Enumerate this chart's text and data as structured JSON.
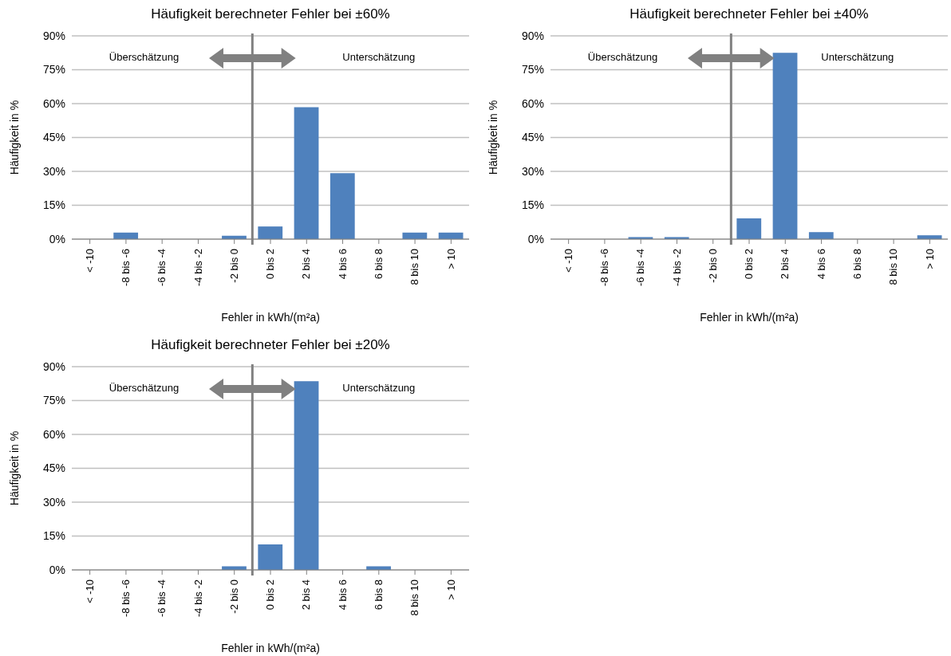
{
  "chart_data": [
    {
      "type": "bar",
      "title": "Häufigkeit berechneter Fehler bei ±60%",
      "xlabel": "Fehler in kWh/(m²a)",
      "ylabel": "Häufigkeit in %",
      "categories": [
        "< -10",
        "-8 bis -6",
        "-6 bis -4",
        "-4 bis -2",
        "-2 bis 0",
        "0 bis 2",
        "2 bis 4",
        "4 bis 6",
        "6 bis 8",
        "8 bis 10",
        "> 10"
      ],
      "values": [
        0,
        2.9,
        0,
        0,
        1.5,
        5.6,
        58.4,
        29.2,
        0,
        2.9,
        2.9
      ],
      "color": "#4f81bd",
      "ylim": [
        0,
        90
      ],
      "yticks": [
        {
          "value": 0,
          "label": "0%"
        },
        {
          "value": 15,
          "label": "15%"
        },
        {
          "value": 30,
          "label": "30%"
        },
        {
          "value": 45,
          "label": "45%"
        },
        {
          "value": 60,
          "label": "60%"
        },
        {
          "value": 75,
          "label": "75%"
        },
        {
          "value": 90,
          "label": "90%"
        }
      ],
      "grid": "y",
      "annotations": [
        "Überschätzung",
        "Unterschätzung"
      ]
    },
    {
      "type": "bar",
      "title": "Häufigkeit berechneter Fehler bei ±40%",
      "xlabel": "Fehler in kWh/(m²a)",
      "ylabel": "Häufigkeit in %",
      "categories": [
        "< -10",
        "-8 bis -6",
        "-6 bis -4",
        "-4 bis -2",
        "-2 bis 0",
        "0 bis 2",
        "2 bis 4",
        "4 bis 6",
        "6 bis 8",
        "8 bis 10",
        "> 10"
      ],
      "values": [
        0,
        0,
        0.9,
        0.9,
        0,
        9.2,
        82.5,
        3.1,
        0,
        0,
        1.7
      ],
      "color": "#4f81bd",
      "ylim": [
        0,
        90
      ],
      "yticks": [
        {
          "value": 0,
          "label": "0%"
        },
        {
          "value": 15,
          "label": "15%"
        },
        {
          "value": 30,
          "label": "30%"
        },
        {
          "value": 45,
          "label": "45%"
        },
        {
          "value": 60,
          "label": "60%"
        },
        {
          "value": 75,
          "label": "75%"
        },
        {
          "value": 90,
          "label": "90%"
        }
      ],
      "grid": "y",
      "annotations": [
        "Überschätzung",
        "Unterschätzung"
      ]
    },
    {
      "type": "bar",
      "title": "Häufigkeit berechneter Fehler bei ±20%",
      "xlabel": "Fehler in kWh/(m²a)",
      "ylabel": "Häufigkeit in %",
      "categories": [
        "< -10",
        "-8 bis -6",
        "-6 bis -4",
        "-4 bis -2",
        "-2 bis 0",
        "0 bis 2",
        "2 bis 4",
        "4 bis 6",
        "6 bis 8",
        "8 bis 10",
        "> 10"
      ],
      "values": [
        0,
        0,
        0,
        0,
        1.6,
        11.3,
        83.6,
        0,
        1.6,
        0,
        0
      ],
      "color": "#4f81bd",
      "ylim": [
        0,
        90
      ],
      "yticks": [
        {
          "value": 0,
          "label": "0%"
        },
        {
          "value": 15,
          "label": "15%"
        },
        {
          "value": 30,
          "label": "30%"
        },
        {
          "value": 45,
          "label": "45%"
        },
        {
          "value": 60,
          "label": "60%"
        },
        {
          "value": 75,
          "label": "75%"
        },
        {
          "value": 90,
          "label": "90%"
        }
      ],
      "grid": "y",
      "annotations": [
        "Überschätzung",
        "Unterschätzung"
      ]
    }
  ]
}
